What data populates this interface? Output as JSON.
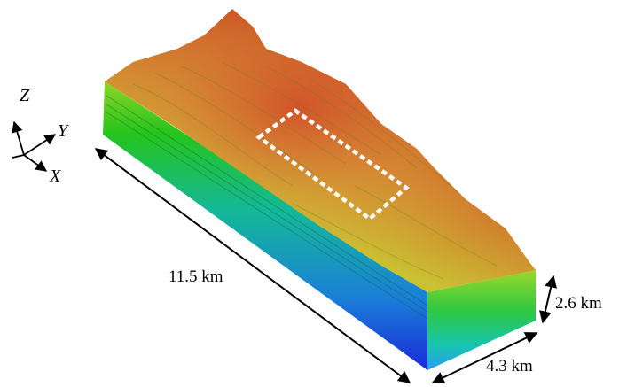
{
  "axes": {
    "z": "Z",
    "y": "Y",
    "x": "X"
  },
  "dimensions": {
    "length": "11.5 km",
    "width": "4.3 km",
    "depth": "2.6 km"
  },
  "colors": {
    "top_high": "#c8281e",
    "top_mid": "#d8a83a",
    "top_low": "#b9d82a",
    "side_top": "#22c21e",
    "side_mid": "#12b5a0",
    "side_bottom": "#1a2bd8",
    "highlight_box": "#ffffff"
  }
}
